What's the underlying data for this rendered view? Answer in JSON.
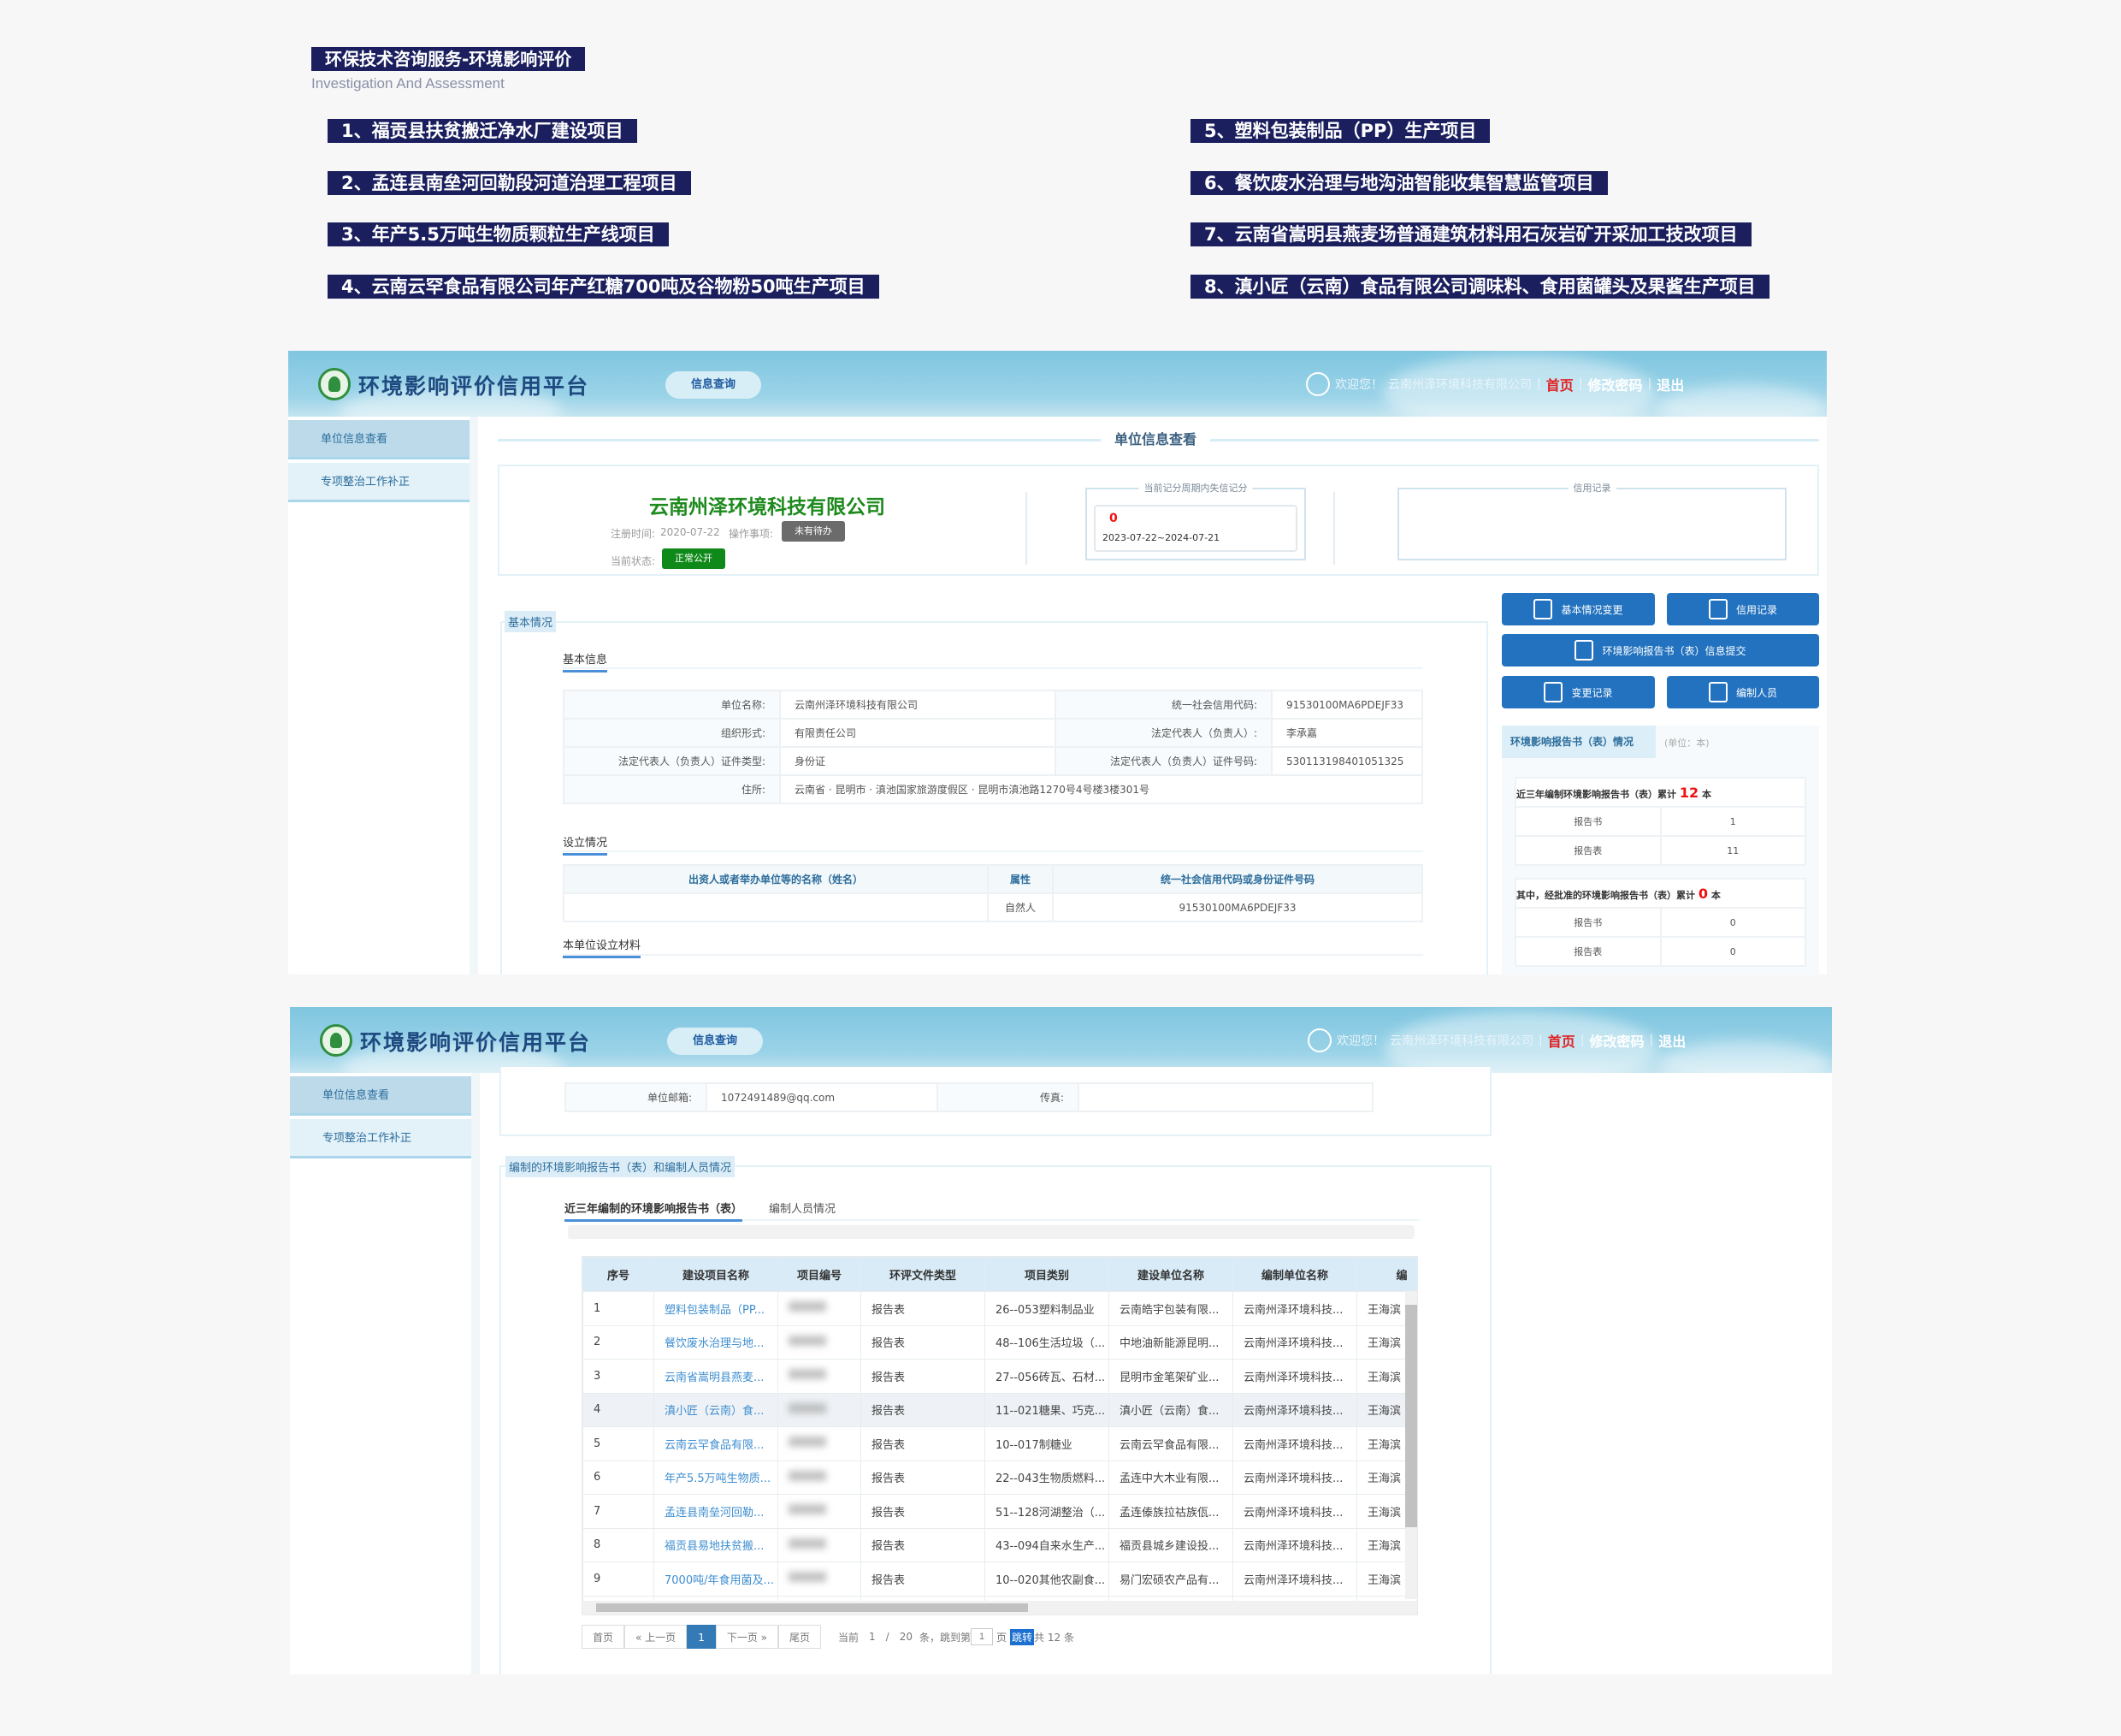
{
  "banner": {
    "title": "环保技术咨询服务-环境影响评价",
    "subtitle": "Investigation And Assessment",
    "projects": [
      "1、福贡县扶贫搬迁净水厂建设项目",
      "2、孟连县南垒河回勒段河道治理工程项目",
      "3、年产5.5万吨生物质颗粒生产线项目",
      "4、云南云罕食品有限公司年产红糖700吨及谷物粉50吨生产项目",
      "5、塑料包装制品（PP）生产项目",
      "6、餐饮废水治理与地沟油智能收集智慧监管项目",
      "7、云南省嵩明县燕麦场普通建筑材料用石灰岩矿开采加工技改项目",
      "8、滇小匠（云南）食品有限公司调味料、食用菌罐头及果酱生产项目"
    ]
  },
  "header": {
    "platform": "环境影响评价信用平台",
    "query": "信息查询",
    "welcome": "欢迎您！",
    "company": "云南州泽环境科技有限公司",
    "home": "首页",
    "change_pwd": "修改密码",
    "logout": "退出",
    "sep": "|"
  },
  "sidebar": {
    "items": [
      "单位信息查看",
      "专项整治工作补正"
    ]
  },
  "unit": {
    "title": "单位信息查看",
    "company": "云南州泽环境科技有限公司",
    "reg_label": "注册时间:",
    "reg_date": "2020-07-22",
    "op_label": "操作事项:",
    "op_badge": "未有待办",
    "status_label": "当前状态:",
    "status_badge": "正常公开",
    "score_legend": "当前记分周期内失信记分",
    "score": "0",
    "period": "2023-07-22~2024-07-21",
    "credit_legend": "信用记录"
  },
  "basic": {
    "group": "基本情况",
    "info_title": "基本信息",
    "rows": [
      [
        "单位名称:",
        "云南州泽环境科技有限公司",
        "统一社会信用代码:",
        "91530100MA6PDEJF33"
      ],
      [
        "组织形式:",
        "有限责任公司",
        "法定代表人（负责人）:",
        "李承嘉"
      ],
      [
        "法定代表人（负责人）证件类型:",
        "身份证",
        "法定代表人（负责人）证件号码:",
        "530113198401051325"
      ]
    ],
    "address_label": "住所:",
    "address": "云南省 · 昆明市 · 滇池国家旅游度假区 · 昆明市滇池路1270号4号楼3楼301号",
    "setup_title": "设立情况",
    "setup_headers": [
      "出资人或者举办单位等的名称（姓名）",
      "属性",
      "统一社会信用代码或身份证件号码"
    ],
    "setup_row": [
      "",
      "自然人",
      "91530100MA6PDEJF33"
    ],
    "material_title": "本单位设立材料"
  },
  "actions": {
    "change": "基本情况变更",
    "credit": "信用记录",
    "submit": "环境影响报告书（表）信息提交",
    "history": "变更记录",
    "staff": "编制人员"
  },
  "report_stats": {
    "title": "环境影响报告书（表）情况",
    "unit": "(单位：本)",
    "total_label": "近三年编制环境影响报告书（表）累计",
    "total": "12",
    "approved_label": "其中，经批准的环境影响报告书（表）累计",
    "approved": "0",
    "ben": "本",
    "total_rows": [
      [
        "报告书",
        "1"
      ],
      [
        "报告表",
        "11"
      ]
    ],
    "approved_rows": [
      [
        "报告书",
        "0"
      ],
      [
        "报告表",
        "0"
      ]
    ]
  },
  "contact": {
    "email_label": "单位邮箱:",
    "email": "1072491489@qq.com",
    "fax_label": "传真:",
    "fax": ""
  },
  "reports": {
    "group": "编制的环境影响报告书（表）和编制人员情况",
    "tabs": [
      "近三年编制的环境影响报告书（表）",
      "编制人员情况"
    ],
    "headers": [
      "序号",
      "建设项目名称",
      "项目编号",
      "环评文件类型",
      "项目类别",
      "建设单位名称",
      "编制单位名称",
      "编"
    ],
    "rows": [
      [
        "1",
        "塑料包装制品（PP...",
        "",
        "报告表",
        "26--053塑料制品业",
        "云南皓宇包装有限...",
        "云南州泽环境科技...",
        "王海滨"
      ],
      [
        "2",
        "餐饮废水治理与地...",
        "",
        "报告表",
        "48--106生活垃圾（...",
        "中地油新能源昆明...",
        "云南州泽环境科技...",
        "王海滨"
      ],
      [
        "3",
        "云南省嵩明县燕麦...",
        "",
        "报告表",
        "27--056砖瓦、石材...",
        "昆明市金笔架矿业...",
        "云南州泽环境科技...",
        "王海滨"
      ],
      [
        "4",
        "滇小匠（云南）食...",
        "",
        "报告表",
        "11--021糖果、巧克...",
        "滇小匠（云南）食...",
        "云南州泽环境科技...",
        "王海滨"
      ],
      [
        "5",
        "云南云罕食品有限...",
        "",
        "报告表",
        "10--017制糖业",
        "云南云罕食品有限...",
        "云南州泽环境科技...",
        "王海滨"
      ],
      [
        "6",
        "年产5.5万吨生物质...",
        "",
        "报告表",
        "22--043生物质燃料...",
        "孟连中大木业有限...",
        "云南州泽环境科技...",
        "王海滨"
      ],
      [
        "7",
        "孟连县南垒河回勒...",
        "",
        "报告表",
        "51--128河湖整治（...",
        "孟连傣族拉祜族佤...",
        "云南州泽环境科技...",
        "王海滨"
      ],
      [
        "8",
        "福贡县易地扶贫搬...",
        "",
        "报告表",
        "43--094自来水生产...",
        "福贡县城乡建设投...",
        "云南州泽环境科技...",
        "王海滨"
      ],
      [
        "9",
        "7000吨/年食用菌及...",
        "",
        "报告表",
        "10--020其他农副食...",
        "易门宏硕农产品有...",
        "云南州泽环境科技...",
        "王海滨"
      ]
    ],
    "highlight_row": 4
  },
  "pager": {
    "first": "首页",
    "prev": "« 上一页",
    "current": "1",
    "next": "下一页 »",
    "last": "尾页",
    "cur_label": "当前",
    "page": "1",
    "slash": "/",
    "size": "20",
    "jump_pre": "条，跳到第",
    "jump_val": "1",
    "jump_post": "页",
    "go": "跳转",
    "total": "共 12 条"
  }
}
